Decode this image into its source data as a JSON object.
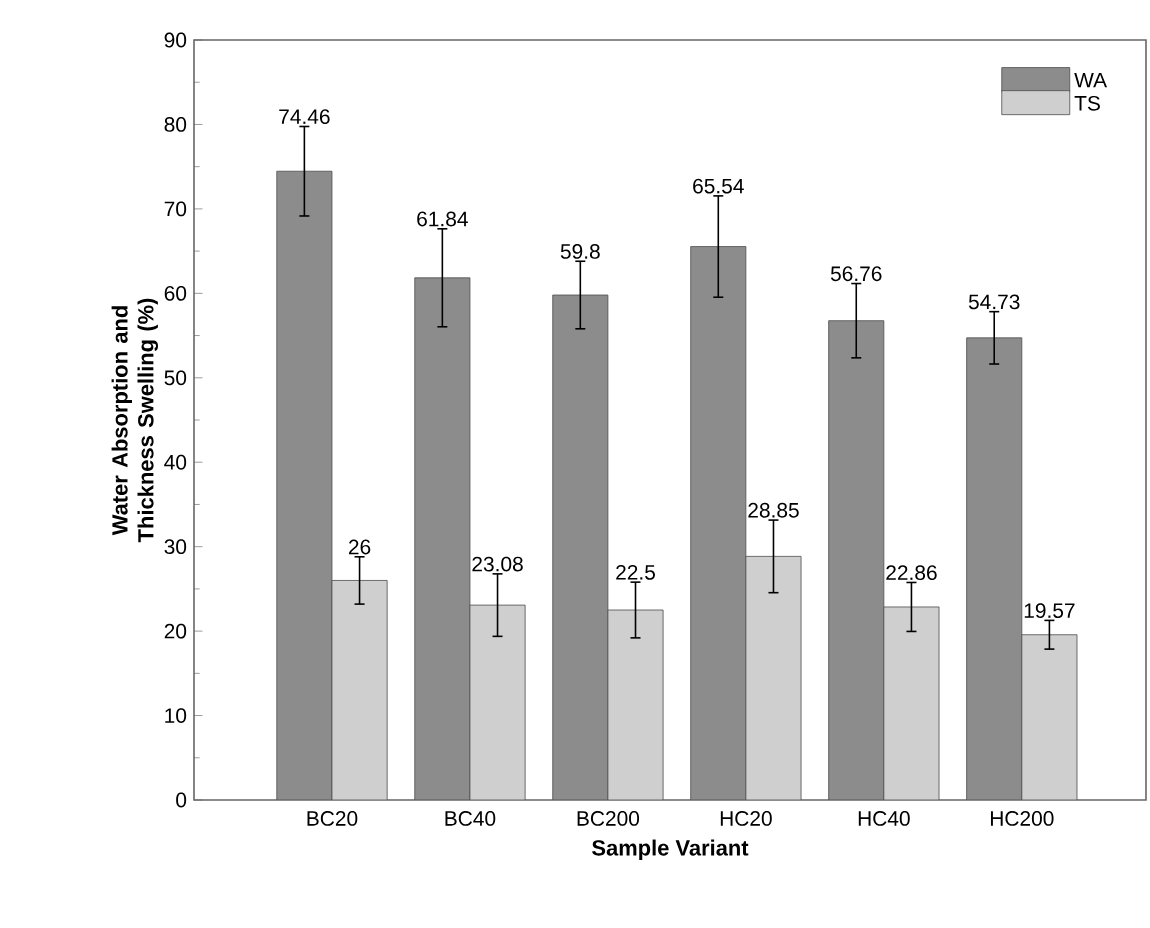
{
  "chart_data": {
    "type": "bar",
    "xlabel": "Sample Variant",
    "ylabel": "Water Absorption and Thickness Swelling (%)",
    "categories": [
      "BC20",
      "BC40",
      "BC200",
      "HC20",
      "HC40",
      "HC200"
    ],
    "series": [
      {
        "name": "WA",
        "color": "#8c8c8c",
        "values": [
          74.46,
          61.84,
          59.8,
          65.54,
          56.76,
          54.73
        ],
        "errors": [
          5.3,
          5.8,
          4,
          6,
          4.4,
          3.1
        ]
      },
      {
        "name": "TS",
        "color": "#cfcfcf",
        "values": [
          26,
          23.08,
          22.5,
          28.85,
          22.86,
          19.57
        ],
        "errors": [
          2.8,
          3.7,
          3.3,
          4.3,
          2.9,
          1.7
        ]
      }
    ],
    "ylim": [
      0,
      90
    ],
    "yticks": [
      0,
      10,
      20,
      30,
      40,
      50,
      60,
      70,
      80,
      90
    ],
    "data_labels": true,
    "legend": "top right",
    "grid": false
  }
}
